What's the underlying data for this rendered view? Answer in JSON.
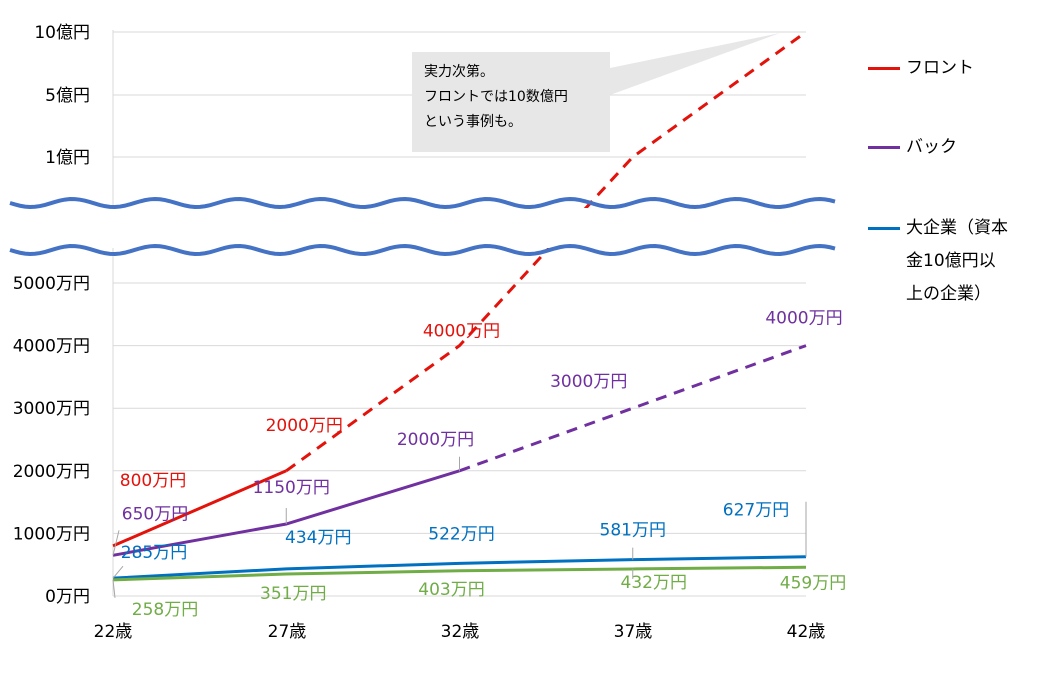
{
  "chart_data": {
    "type": "line",
    "x_categories": [
      "22歳",
      "27歳",
      "32歳",
      "37歳",
      "42歳"
    ],
    "y_ticks_lower": [
      "0万円",
      "1000万円",
      "2000万円",
      "3000万円",
      "4000万円",
      "5000万円"
    ],
    "y_ticks_upper": [
      "1億円",
      "5億円",
      "10億円"
    ],
    "axis_break": true,
    "grid": true,
    "legend_position": "right",
    "series": [
      {
        "name": "フロント",
        "color": "#e3120b",
        "x": [
          22,
          27,
          32,
          37,
          42
        ],
        "y": [
          800,
          2000,
          4000,
          10000,
          100000
        ],
        "solid_until_index": 1,
        "labels": [
          "800万円",
          "2000万円",
          "4000万円"
        ]
      },
      {
        "name": "バック",
        "color": "#7030a0",
        "x": [
          22,
          27,
          32,
          37,
          42
        ],
        "y": [
          650,
          1150,
          2000,
          3000,
          4000
        ],
        "solid_until_index": 2,
        "labels": [
          "650万円",
          "1150万円",
          "2000万円",
          "3000万円",
          "4000万円"
        ]
      },
      {
        "name": "大企業（資本\n金10億円以\n上の企業）",
        "color": "#0070c0",
        "x": [
          22,
          27,
          32,
          37,
          42
        ],
        "y": [
          285,
          434,
          522,
          581,
          627
        ],
        "solid_until_index": 4,
        "labels": [
          "285万円",
          "434万円",
          "522万円",
          "581万円",
          "627万円"
        ]
      },
      {
        "color": "#70ad47",
        "x": [
          22,
          27,
          32,
          37,
          42
        ],
        "y": [
          258,
          351,
          403,
          432,
          459
        ],
        "solid_until_index": 4,
        "labels": [
          "258万円",
          "351万円",
          "403万円",
          "432万円",
          "459万円"
        ]
      }
    ],
    "annotation": {
      "lines": [
        "実力次第。",
        "フロントでは10数億円",
        "という事例も。"
      ]
    },
    "break_line_color": "#4472c4",
    "grid_color": "#d9d9d9"
  }
}
